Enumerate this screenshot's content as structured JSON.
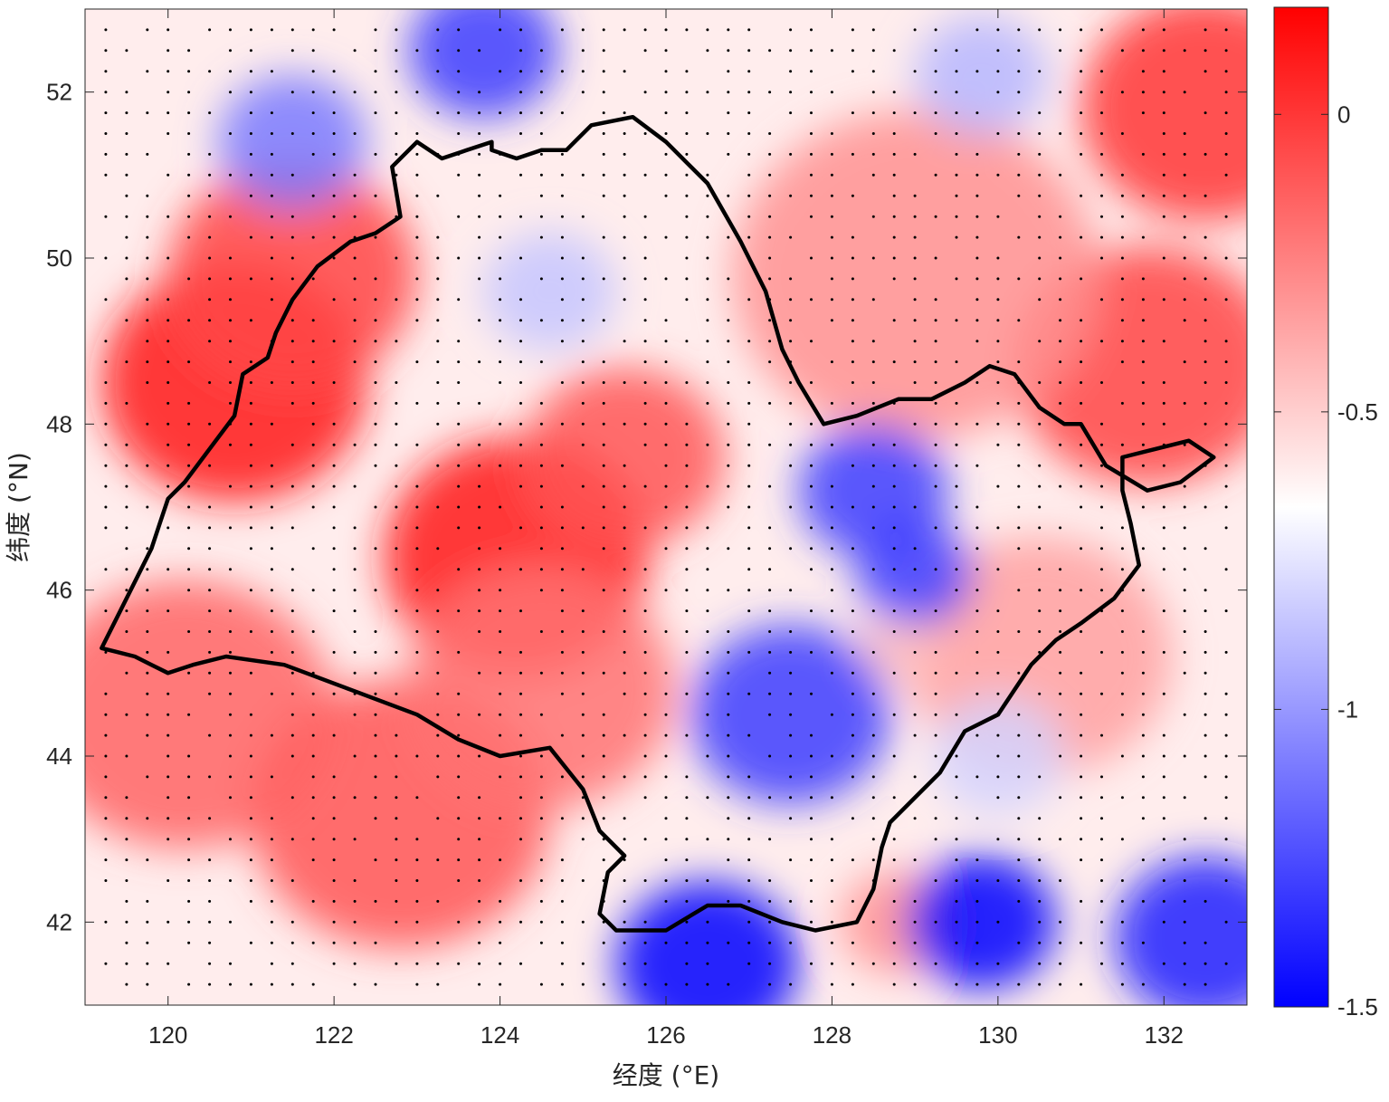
{
  "chart_data": {
    "type": "heatmap",
    "title": "",
    "xlabel": "经度 (°E)",
    "ylabel": "纬度 (°N)",
    "xlim": [
      119.0,
      133.0
    ],
    "ylim": [
      41.0,
      53.0
    ],
    "x_ticks": [
      120,
      122,
      124,
      126,
      128,
      130,
      132
    ],
    "x_tick_labels": [
      "120",
      "122",
      "124",
      "126",
      "128",
      "130",
      "132"
    ],
    "y_ticks": [
      42,
      44,
      46,
      48,
      50,
      52
    ],
    "y_tick_labels": [
      "42",
      "44",
      "46",
      "48",
      "50",
      "52"
    ],
    "colorbar": {
      "min": -1.5,
      "max": 0.18,
      "ticks": [
        0,
        -0.5,
        -1,
        -1.5
      ],
      "tick_labels": [
        "0",
        "-0.5",
        "-1",
        "-1.5"
      ],
      "colormap": "blue-white-red",
      "color_low": "#0000ff",
      "color_mid": "#ffffff",
      "color_high": "#ff0000"
    },
    "field_blobs": [
      {
        "lon": 124.2,
        "lat": 46.4,
        "value": 0.1,
        "radius_deg": 1.6
      },
      {
        "lon": 120.8,
        "lat": 48.5,
        "value": 0.1,
        "radius_deg": 1.6
      },
      {
        "lon": 121.5,
        "lat": 49.8,
        "value": -0.05,
        "radius_deg": 1.5
      },
      {
        "lon": 122.8,
        "lat": 43.3,
        "value": -0.1,
        "radius_deg": 1.8
      },
      {
        "lon": 120.2,
        "lat": 44.5,
        "value": -0.15,
        "radius_deg": 1.8
      },
      {
        "lon": 124.5,
        "lat": 44.8,
        "value": -0.2,
        "radius_deg": 1.6
      },
      {
        "lon": 125.5,
        "lat": 47.6,
        "value": -0.1,
        "radius_deg": 1.2
      },
      {
        "lon": 132.5,
        "lat": 51.8,
        "value": 0.0,
        "radius_deg": 1.5
      },
      {
        "lon": 131.8,
        "lat": 48.7,
        "value": -0.05,
        "radius_deg": 1.6
      },
      {
        "lon": 129.0,
        "lat": 49.8,
        "value": -0.3,
        "radius_deg": 2.2
      },
      {
        "lon": 130.5,
        "lat": 45.2,
        "value": -0.35,
        "radius_deg": 1.6
      },
      {
        "lon": 128.8,
        "lat": 42.0,
        "value": -0.3,
        "radius_deg": 0.7
      },
      {
        "lon": 128.8,
        "lat": 45.3,
        "value": -0.45,
        "radius_deg": 0.5
      },
      {
        "lon": 123.8,
        "lat": 52.5,
        "value": -1.3,
        "radius_deg": 0.9
      },
      {
        "lon": 121.5,
        "lat": 51.4,
        "value": -1.1,
        "radius_deg": 0.9
      },
      {
        "lon": 124.6,
        "lat": 49.6,
        "value": -0.85,
        "radius_deg": 0.8
      },
      {
        "lon": 129.8,
        "lat": 52.2,
        "value": -0.9,
        "radius_deg": 0.8
      },
      {
        "lon": 128.5,
        "lat": 47.2,
        "value": -1.3,
        "radius_deg": 0.9
      },
      {
        "lon": 129.0,
        "lat": 46.2,
        "value": -1.3,
        "radius_deg": 0.7
      },
      {
        "lon": 127.5,
        "lat": 44.5,
        "value": -1.3,
        "radius_deg": 1.2
      },
      {
        "lon": 126.5,
        "lat": 41.5,
        "value": -1.6,
        "radius_deg": 1.1
      },
      {
        "lon": 129.8,
        "lat": 42.0,
        "value": -1.5,
        "radius_deg": 0.9
      },
      {
        "lon": 132.5,
        "lat": 41.8,
        "value": -1.4,
        "radius_deg": 1.1
      },
      {
        "lon": 130.0,
        "lat": 44.0,
        "value": -0.8,
        "radius_deg": 0.8
      }
    ],
    "field_background_value": -0.6,
    "stippling": {
      "description": "black dots on a regular grid (about 0.25° spacing) marking grid points"
    },
    "boundary": {
      "color": "#000000",
      "lon": [
        119.2,
        119.6,
        119.8,
        120.0,
        120.3,
        120.7,
        121.4,
        122.2,
        123.0,
        123.5,
        124.0,
        124.6,
        125.0,
        125.2,
        125.5,
        125.3,
        125.2,
        125.4,
        126.0,
        126.5,
        126.9,
        127.4,
        127.8,
        128.3,
        128.5,
        128.6,
        128.7,
        129.3,
        129.6,
        130.0,
        130.4,
        130.7,
        131.0,
        131.4,
        131.7,
        131.6,
        131.5,
        131.5,
        131.9,
        132.3,
        132.6,
        132.2,
        131.8,
        131.3,
        131.0,
        130.8,
        130.5,
        130.2,
        129.9,
        129.6,
        129.2,
        128.8,
        128.3,
        127.9,
        127.6,
        127.4,
        127.2,
        126.9,
        126.5,
        126.0,
        125.6,
        125.1,
        124.8,
        124.5,
        124.2,
        123.9,
        123.9,
        123.6,
        123.3,
        123.0,
        122.7,
        122.8,
        122.5,
        122.2,
        121.8,
        121.5,
        121.3,
        121.2,
        120.9,
        120.8,
        120.5,
        120.2,
        120.0,
        119.9,
        119.8,
        119.5,
        119.2
      ],
      "lat": [
        45.3,
        45.2,
        45.1,
        45.0,
        45.1,
        45.2,
        45.1,
        44.8,
        44.5,
        44.2,
        44.0,
        44.1,
        43.6,
        43.1,
        42.8,
        42.6,
        42.1,
        41.9,
        41.9,
        42.2,
        42.2,
        42.0,
        41.9,
        42.0,
        42.4,
        42.9,
        43.2,
        43.8,
        44.3,
        44.5,
        45.1,
        45.4,
        45.6,
        45.9,
        46.3,
        46.8,
        47.2,
        47.6,
        47.7,
        47.8,
        47.6,
        47.3,
        47.2,
        47.5,
        48.0,
        48.0,
        48.2,
        48.6,
        48.7,
        48.5,
        48.3,
        48.3,
        48.1,
        48.0,
        48.5,
        48.9,
        49.6,
        50.2,
        50.9,
        51.4,
        51.7,
        51.6,
        51.3,
        51.3,
        51.2,
        51.3,
        51.4,
        51.3,
        51.2,
        51.4,
        51.1,
        50.5,
        50.3,
        50.2,
        49.9,
        49.5,
        49.1,
        48.8,
        48.6,
        48.1,
        47.7,
        47.3,
        47.1,
        46.8,
        46.5,
        45.9,
        45.3
      ]
    }
  }
}
